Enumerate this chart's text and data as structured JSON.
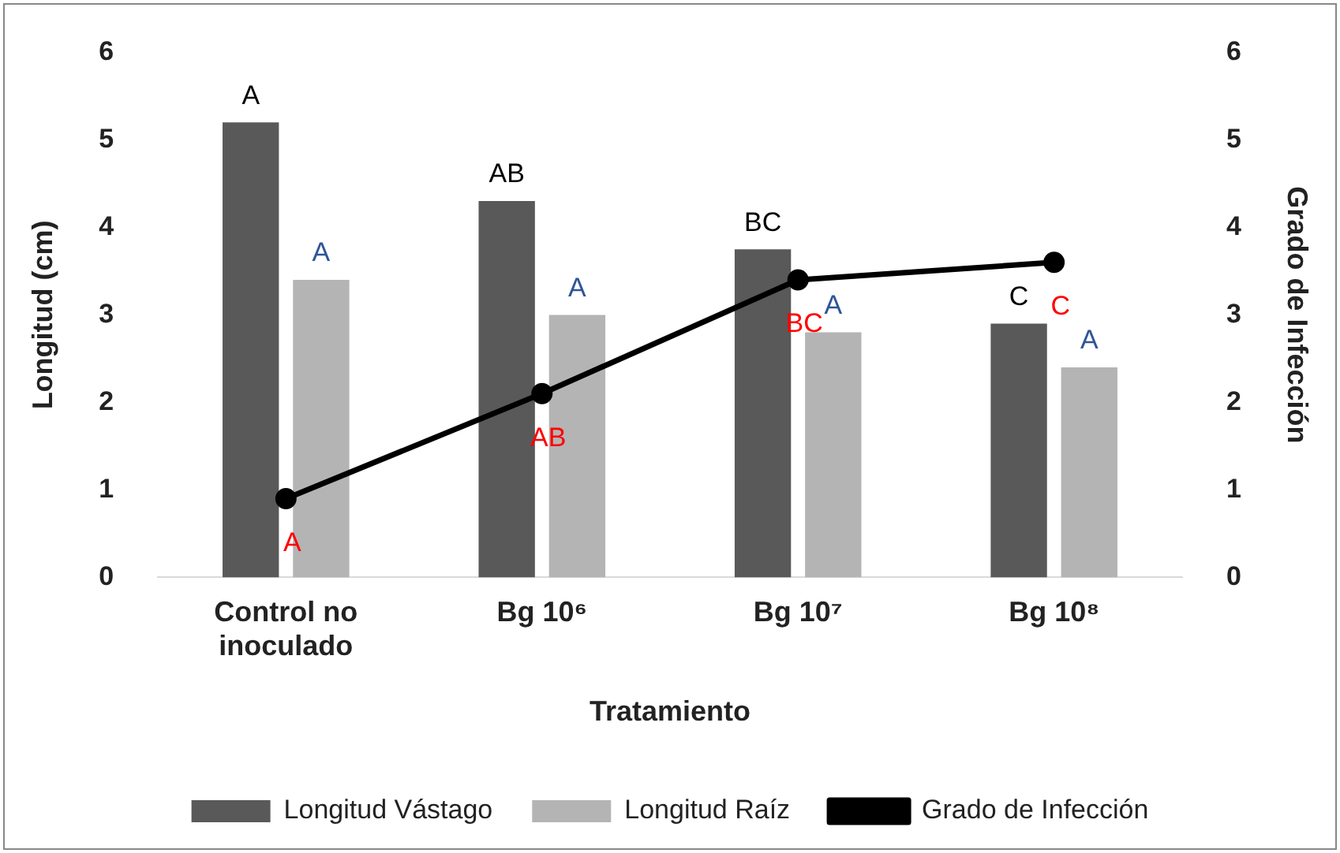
{
  "chart_data": {
    "type": "bar",
    "xlabel": "Tratamiento",
    "ylabel": "Longitud (cm)",
    "y2label": "Grado de Infección",
    "categories": [
      "Control no inoculado",
      "Bg 10⁶",
      "Bg 10⁷",
      "Bg 10⁸"
    ],
    "series": [
      {
        "name": "Longitud Vástago",
        "color": "#595959",
        "values": [
          5.2,
          4.3,
          3.75,
          2.9
        ]
      },
      {
        "name": "Longitud Raíz",
        "color": "#b4b4b4",
        "values": [
          3.4,
          3.0,
          2.8,
          2.4
        ]
      },
      {
        "name": "Grado de Infección",
        "type": "line",
        "axis": "y2",
        "color": "#000000",
        "values": [
          0.9,
          2.1,
          3.4,
          3.6
        ]
      }
    ],
    "ylim": [
      0,
      6
    ],
    "yticks": [
      0,
      1,
      2,
      3,
      4,
      5,
      6
    ],
    "y2lim": [
      0,
      6
    ],
    "y2ticks": [
      0,
      1,
      2,
      3,
      4,
      5,
      6
    ],
    "grid": false,
    "legend": "bottom",
    "marker": "circle",
    "line_style": "solid",
    "annotations": [
      {
        "text": "A",
        "x": "Control no inoculado",
        "y": 5.2
      },
      {
        "text": "AB",
        "x": "Bg 10⁶",
        "y": 4.3
      },
      {
        "text": "BC",
        "x": "Bg 10⁷",
        "y": 3.75
      },
      {
        "text": "C",
        "x": "Bg 10⁸",
        "y": 2.9
      },
      {
        "text": "A",
        "x": "Control no inoculado",
        "y": 3.4
      },
      {
        "text": "A",
        "x": "Bg 10⁶",
        "y": 3.0
      },
      {
        "text": "A",
        "x": "Bg 10⁷",
        "y": 2.8
      },
      {
        "text": "A",
        "x": "Bg 10⁸",
        "y": 2.4
      },
      {
        "text": "A",
        "x": "Control no inoculado",
        "y": 0.9
      },
      {
        "text": "AB",
        "x": "Bg 10⁶",
        "y": 2.1
      },
      {
        "text": "BC",
        "x": "Bg 10⁷",
        "y": 3.4
      },
      {
        "text": "C",
        "x": "Bg 10⁸",
        "y": 3.6
      }
    ]
  }
}
